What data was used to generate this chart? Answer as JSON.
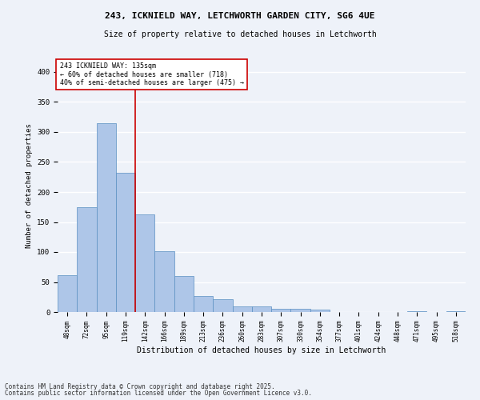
{
  "title1": "243, ICKNIELD WAY, LETCHWORTH GARDEN CITY, SG6 4UE",
  "title2": "Size of property relative to detached houses in Letchworth",
  "xlabel": "Distribution of detached houses by size in Letchworth",
  "ylabel": "Number of detached properties",
  "categories": [
    "48sqm",
    "72sqm",
    "95sqm",
    "119sqm",
    "142sqm",
    "166sqm",
    "189sqm",
    "213sqm",
    "236sqm",
    "260sqm",
    "283sqm",
    "307sqm",
    "330sqm",
    "354sqm",
    "377sqm",
    "401sqm",
    "424sqm",
    "448sqm",
    "471sqm",
    "495sqm",
    "518sqm"
  ],
  "values": [
    62,
    175,
    315,
    232,
    163,
    102,
    60,
    27,
    22,
    10,
    10,
    6,
    5,
    4,
    0,
    0,
    0,
    0,
    1,
    0,
    1
  ],
  "bar_color": "#aec6e8",
  "bar_edge_color": "#5a8fc2",
  "vline_x": 3.5,
  "vline_color": "#cc0000",
  "annotation_text": "243 ICKNIELD WAY: 135sqm\n← 60% of detached houses are smaller (718)\n40% of semi-detached houses are larger (475) →",
  "annotation_box_color": "#ffffff",
  "annotation_box_edge_color": "#cc0000",
  "bg_color": "#eef2f9",
  "grid_color": "#ffffff",
  "footer1": "Contains HM Land Registry data © Crown copyright and database right 2025.",
  "footer2": "Contains public sector information licensed under the Open Government Licence v3.0.",
  "ylim": [
    0,
    420
  ],
  "yticks": [
    0,
    50,
    100,
    150,
    200,
    250,
    300,
    350,
    400
  ]
}
